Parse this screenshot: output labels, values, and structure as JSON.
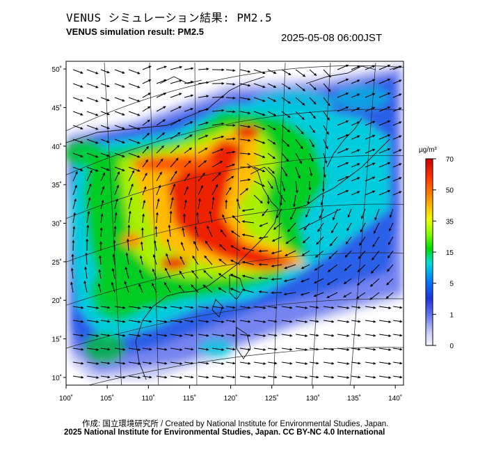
{
  "header": {
    "title_jp": "VENUS シミュレーション結果: PM2.5",
    "title_en": "VENUS simulation result: PM2.5",
    "timestamp": "2025-05-08 06:00JST"
  },
  "map": {
    "lon_ticks": [
      "100˚",
      "105˚",
      "110˚",
      "115˚",
      "120˚",
      "125˚",
      "130˚",
      "135˚",
      "140˚"
    ],
    "lat_ticks": [
      "50˚",
      "45˚",
      "40˚",
      "35˚",
      "30˚",
      "25˚",
      "20˚",
      "15˚",
      "10˚"
    ],
    "lon_values": [
      100,
      105,
      110,
      115,
      120,
      125,
      130,
      135,
      140
    ],
    "lat_values": [
      50,
      45,
      40,
      35,
      30,
      25,
      20,
      15,
      10
    ],
    "lon_range": [
      100,
      141
    ],
    "lat_range": [
      9,
      51
    ],
    "field": "PM2.5 concentration with wind vectors"
  },
  "colorbar": {
    "unit": "µg/m³",
    "ticks": [
      "70",
      "50",
      "35",
      "15",
      "5",
      "1",
      "0"
    ],
    "colors": [
      "#cc0000",
      "#ff3300",
      "#ff8800",
      "#ffcc00",
      "#e8ff00",
      "#88ff00",
      "#00dd00",
      "#00dddd",
      "#0077ff",
      "#2233dd",
      "#6677ee",
      "#c8ccf5",
      "#f4f4ff"
    ]
  },
  "credits": {
    "line1": "作成: 国立環境研究所 / Created by National Institute for Environmental Studies, Japan.",
    "line2": "2025 National Institute for Environmental Studies, Japan. CC BY-NC 4.0 International"
  }
}
